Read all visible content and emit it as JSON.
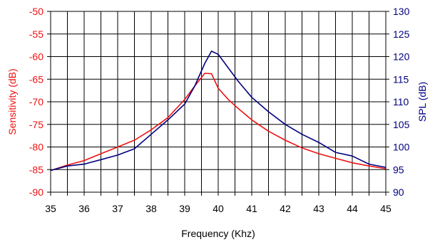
{
  "chart_data": {
    "type": "line",
    "title": "",
    "xlabel": "Frequency (Khz)",
    "ylabel_left": "Sensitivity (dB)",
    "ylabel_right": "SPL (dB)",
    "xlim": [
      35,
      45
    ],
    "ylim_left": [
      -90,
      -50
    ],
    "ylim_right": [
      90,
      130
    ],
    "x_ticks": [
      "35",
      "36",
      "37",
      "38",
      "39",
      "40",
      "41",
      "42",
      "43",
      "44",
      "45"
    ],
    "y_ticks_left": [
      "-50",
      "-55",
      "-60",
      "-65",
      "-70",
      "-75",
      "-80",
      "-85",
      "-90"
    ],
    "y_ticks_right": [
      "130",
      "125",
      "120",
      "115",
      "110",
      "105",
      "100",
      "95",
      "90"
    ],
    "grid": true,
    "colors": {
      "left_axis": "#ee1111",
      "right_axis": "#000080",
      "grid": "#000000"
    },
    "series": [
      {
        "axis": "left",
        "color": "#ee1111",
        "x": [
          35.0,
          35.5,
          36.0,
          36.5,
          37.0,
          37.5,
          38.0,
          38.5,
          39.0,
          39.3,
          39.6,
          39.8,
          40.0,
          40.3,
          40.6,
          41.0,
          41.5,
          42.0,
          42.5,
          43.0,
          43.5,
          44.0,
          44.5,
          45.0
        ],
        "y": [
          -85.2,
          -84.0,
          -83.0,
          -81.5,
          -80.0,
          -78.5,
          -76.2,
          -73.5,
          -69.5,
          -66.5,
          -63.7,
          -63.8,
          -67.0,
          -69.5,
          -71.5,
          -74.0,
          -76.5,
          -78.5,
          -80.2,
          -81.5,
          -82.5,
          -83.5,
          -84.2,
          -84.8
        ]
      },
      {
        "axis": "right",
        "color": "#000080",
        "x": [
          35.0,
          35.5,
          36.0,
          36.5,
          37.0,
          37.5,
          38.0,
          38.5,
          39.0,
          39.3,
          39.6,
          39.8,
          40.0,
          40.3,
          40.6,
          41.0,
          41.5,
          42.0,
          42.5,
          43.0,
          43.5,
          44.0,
          44.5,
          45.0
        ],
        "y": [
          94.8,
          95.8,
          96.2,
          97.2,
          98.2,
          99.6,
          102.8,
          106.0,
          109.5,
          113.5,
          118.5,
          121.2,
          120.5,
          117.5,
          114.5,
          111.0,
          107.8,
          105.0,
          102.8,
          101.0,
          98.8,
          98.0,
          96.2,
          95.5
        ]
      }
    ]
  }
}
